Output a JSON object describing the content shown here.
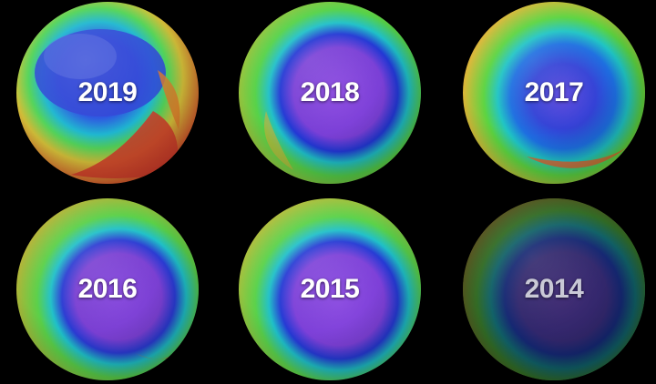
{
  "globes": [
    {
      "year": "2019",
      "color_hole": "#2a3fd0"
    },
    {
      "year": "2018",
      "color_hole": "#7b3fd6"
    },
    {
      "year": "2017",
      "color_hole": "#3340d4"
    },
    {
      "year": "2016",
      "color_hole": "#7a3fd2"
    },
    {
      "year": "2015",
      "color_hole": "#7d40d8"
    },
    {
      "year": "2014",
      "color_hole": "#5a3aa8"
    }
  ],
  "colors": {
    "background": "#000000",
    "ozone_low": "#7b3fd6",
    "ozone_mid_low": "#1f3bd6",
    "ozone_mid": "#1fc4c4",
    "ozone_mid_high": "#6fd23a",
    "ozone_high": "#e0452a"
  }
}
